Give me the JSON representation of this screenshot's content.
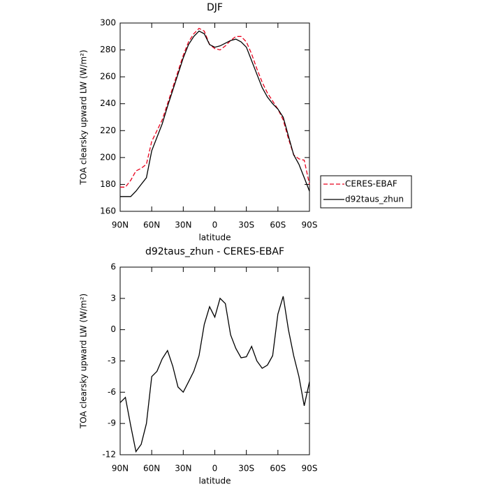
{
  "chart_data": [
    {
      "type": "line",
      "title": "DJF",
      "xlabel": "latitude",
      "ylabel": "TOA clearsky upward LW (W/m²)",
      "x": [
        90,
        85,
        80,
        75,
        70,
        65,
        60,
        55,
        50,
        45,
        40,
        35,
        30,
        25,
        20,
        15,
        10,
        5,
        0,
        -5,
        -10,
        -15,
        -20,
        -25,
        -30,
        -35,
        -40,
        -45,
        -50,
        -55,
        -60,
        -65,
        -70,
        -75,
        -80,
        -85,
        -90
      ],
      "series": [
        {
          "name": "CERES-EBAF",
          "color": "#e8001c",
          "dash": "dashed",
          "values": [
            178,
            178,
            183,
            190,
            192,
            195,
            212,
            220,
            228,
            240,
            252,
            264,
            276,
            286,
            292,
            296,
            294,
            284,
            281,
            280,
            283,
            287,
            290,
            290,
            286,
            277,
            266,
            256,
            248,
            242,
            236,
            228,
            214,
            202,
            199,
            198,
            180
          ]
        },
        {
          "name": "d92taus_zhun",
          "color": "#000000",
          "dash": "solid",
          "values": [
            171,
            171,
            171,
            175,
            180,
            185,
            205,
            215,
            225,
            238,
            250,
            262,
            274,
            284,
            290,
            294,
            292,
            284,
            282,
            283,
            285,
            287,
            288,
            286,
            282,
            272,
            262,
            252,
            245,
            240,
            236,
            230,
            216,
            202,
            195,
            185,
            175
          ]
        }
      ],
      "xlim": [
        90,
        -90
      ],
      "xticks": [
        {
          "value": 90,
          "label": "90N"
        },
        {
          "value": 60,
          "label": "60N"
        },
        {
          "value": 30,
          "label": "30N"
        },
        0,
        {
          "value": -30,
          "label": "30S"
        },
        {
          "value": -60,
          "label": "60S"
        },
        {
          "value": -90,
          "label": "90S"
        }
      ],
      "ylim": [
        160,
        300
      ],
      "yticks": [
        160,
        180,
        200,
        220,
        240,
        260,
        280,
        300
      ],
      "legend": "right-outside"
    },
    {
      "type": "line",
      "title": "d92taus_zhun - CERES-EBAF",
      "xlabel": "latitude",
      "ylabel": "TOA clearsky upward LW (W/m²)",
      "x": [
        90,
        85,
        80,
        75,
        70,
        65,
        60,
        55,
        50,
        45,
        40,
        35,
        30,
        25,
        20,
        15,
        10,
        5,
        0,
        -5,
        -10,
        -15,
        -20,
        -25,
        -30,
        -35,
        -40,
        -45,
        -50,
        -55,
        -60,
        -65,
        -70,
        -75,
        -80,
        -85,
        -90
      ],
      "color": "#000000",
      "values": [
        -7,
        -6.5,
        -9.2,
        -11.7,
        -11,
        -9,
        -4.5,
        -4,
        -2.8,
        -2,
        -3.5,
        -5.5,
        -6,
        -5,
        -4,
        -2.5,
        0.5,
        2.2,
        1.2,
        3,
        2.5,
        -0.5,
        -1.8,
        -2.7,
        -2.6,
        -1.6,
        -3,
        -3.7,
        -3.4,
        -2.5,
        1.5,
        3.2,
        0,
        -2.5,
        -4.5,
        -7.3,
        -5
      ],
      "xlim": [
        90,
        -90
      ],
      "xticks": [
        {
          "value": 90,
          "label": "90N"
        },
        {
          "value": 60,
          "label": "60N"
        },
        {
          "value": 30,
          "label": "30N"
        },
        0,
        {
          "value": -30,
          "label": "30S"
        },
        {
          "value": -60,
          "label": "60S"
        },
        {
          "value": -90,
          "label": "90S"
        }
      ],
      "ylim": [
        -12,
        6
      ],
      "yticks": [
        -12,
        -9,
        -6,
        -3,
        0,
        3,
        6
      ]
    }
  ]
}
